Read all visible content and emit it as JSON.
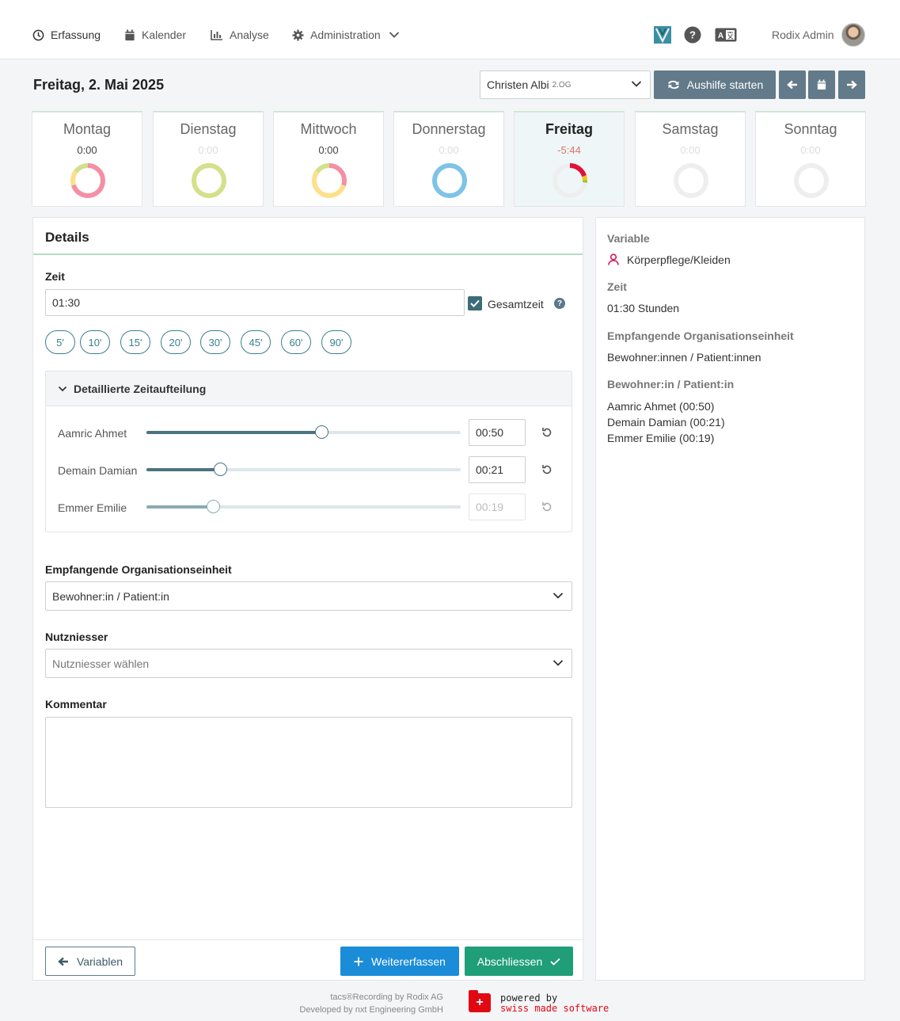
{
  "nav": {
    "items": [
      {
        "label": "Erfassung",
        "icon": "clock-icon"
      },
      {
        "label": "Kalender",
        "icon": "calendar-icon"
      },
      {
        "label": "Analyse",
        "icon": "chart-icon"
      },
      {
        "label": "Administration",
        "icon": "gear-icon"
      }
    ],
    "user_name": "Rodix Admin"
  },
  "header": {
    "date": "Freitag, 2. Mai 2025",
    "person": "Christen Albi",
    "person_sub": "2.OG",
    "aushilfe_label": "Aushilfe starten"
  },
  "days": [
    {
      "name": "Montag",
      "value": "0:00",
      "segments": [
        {
          "color": "#f48fa4",
          "frac": 0.7
        },
        {
          "color": "#fde08a",
          "frac": 0.15
        },
        {
          "color": "#d4e08a",
          "frac": 0.15
        }
      ]
    },
    {
      "name": "Dienstag",
      "value": "0:00",
      "segments": [
        {
          "color": "#d4e08a",
          "frac": 1.0
        }
      ]
    },
    {
      "name": "Mittwoch",
      "value": "0:00",
      "segments": [
        {
          "color": "#f48fa4",
          "frac": 0.3
        },
        {
          "color": "#fde08a",
          "frac": 0.55
        },
        {
          "color": "#d4e08a",
          "frac": 0.15
        }
      ]
    },
    {
      "name": "Donnerstag",
      "value": "0:00",
      "segments": [
        {
          "color": "#7ec3e8",
          "frac": 1.0
        }
      ]
    },
    {
      "name": "Freitag",
      "value": "-5:44",
      "segments": [
        {
          "color": "#e0123a",
          "frac": 0.2
        },
        {
          "color": "#f0c419",
          "frac": 0.05
        },
        {
          "color": "#8cc63f",
          "frac": 0.02
        }
      ]
    },
    {
      "name": "Samstag",
      "value": "0:00",
      "segments": []
    },
    {
      "name": "Sonntag",
      "value": "0:00",
      "segments": []
    }
  ],
  "details": {
    "title": "Details",
    "zeit_label": "Zeit",
    "zeit_value": "01:30",
    "gesamtzeit_label": "Gesamtzeit",
    "help": "?",
    "presets": [
      "5'",
      "10'",
      "15'",
      "20'",
      "30'",
      "45'",
      "60'",
      "90'"
    ],
    "breakdown_title": "Detaillierte Zeitaufteilung",
    "breakdown": [
      {
        "name": "Aamric Ahmet",
        "value": "00:50",
        "fraction": 0.556,
        "disabled": false
      },
      {
        "name": "Demain Damian",
        "value": "00:21",
        "fraction": 0.233,
        "disabled": false
      },
      {
        "name": "Emmer Emilie",
        "value": "00:19",
        "fraction": 0.211,
        "disabled": true
      }
    ],
    "org_label": "Empfangende Organisationseinheit",
    "org_value": "Bewohner:in / Patient:in",
    "nutz_label": "Nutzniesser",
    "nutz_placeholder": "Nutzniesser wählen",
    "kommentar_label": "Kommentar",
    "btn_back": "Variablen",
    "btn_more": "Weitererfassen",
    "btn_finish": "Abschliessen"
  },
  "summary": {
    "variable_label": "Variable",
    "variable_value": "Körperpflege/Kleiden",
    "zeit_label": "Zeit",
    "zeit_value": "01:30 Stunden",
    "org_label": "Empfangende Organisationseinheit",
    "org_value": "Bewohner:innen / Patient:innen",
    "patient_label": "Bewohner:in / Patient:in",
    "patients": [
      "Aamric Ahmet (00:50)",
      "Demain Damian (00:21)",
      "Emmer Emilie (00:19)"
    ]
  },
  "footer": {
    "line1": "tacs®Recording by Rodix AG",
    "line2": "Developed by nxt Engineering GmbH",
    "powered": "powered by",
    "swiss": "swiss made software"
  }
}
